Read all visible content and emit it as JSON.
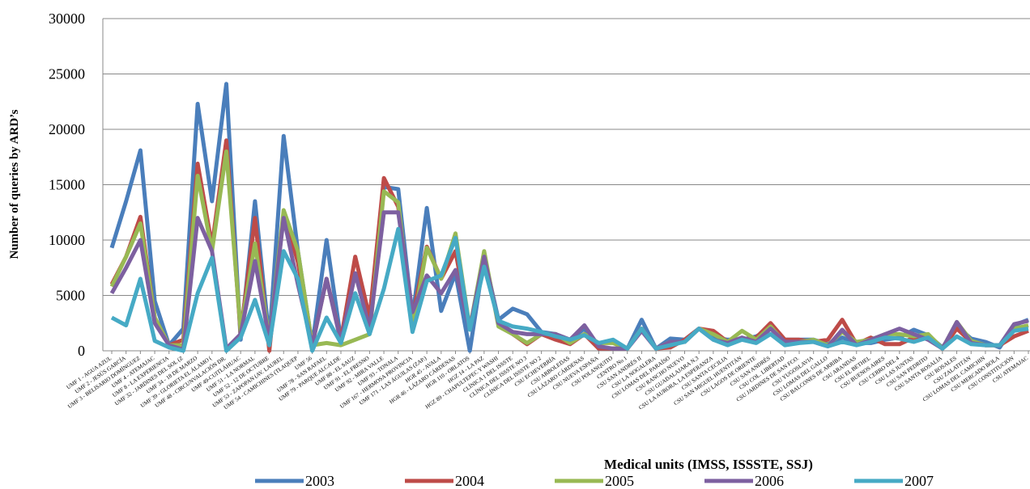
{
  "chart_data": {
    "type": "line",
    "y_label": "Number of queries by ARD’s",
    "x_label": "Medical units (IMSS, ISSSTE, SSJ)",
    "categories": [
      "UMF 1 - AGUA AZUL",
      "UMF 2 - JESÚS GARCÍA",
      "UMF 3 - BELISARIO DOMÍNGUEZ",
      "UMF 4 - ATEMAJAC",
      "UMF 8 - LA EXPERIENCIA",
      "UMF 32 - JARDINES DEL SOL (Z",
      "UMF 34 - 18 DE MARZO",
      "UMF 39 - GLORIETA EL ÁLAMO (",
      "UMF 48 - CIRCUNVALACIÓN DR.",
      "UMF 49-CUITLÁHUAC",
      "UMF 51 - LA NORMAL",
      "UMF 52 - 12 DE OCTUBRE",
      "UMF 53 - ZAPOPAN (AV. LAUREL",
      "UMF 54 - CAMICHINES (TLAQUEP",
      "UMF 56",
      "UMF 78 - SAN RAFAEL",
      "UMF 79 - PARQUE ALCALDE",
      "UMF 88 - EL SAUZ",
      "UMF 91 - EL FRESNO",
      "UMF 92 - MIRA VALLE",
      "UMF 93 - TONALA",
      "UMF 167 - HERMOSA PROVINCIA",
      "UMF 171 - LAS ÁGUILAS (ZAP.)",
      "HGR 45 - AVALA",
      "HGR 46 - LÁZARO CÁRDENAS",
      "HGR 110 - ORLATOS",
      "HGZ 14 - LA PAZ",
      "HGZ 89 - CHAPULTEPEC Y WASHI",
      "CLÍNICA 1 DEL ISSSTE",
      "CLÍNICA DEL ISSSTE NO 3",
      "CLÍNICA DEL ISSSTE NO 2",
      "CSU ECHEVERRÍA",
      "CSU ARBOLEDAS",
      "CSU LÁZARO CÁRDENAS",
      "CSU NUEVA ESPAÑA",
      "CSU POLANQUITO",
      "CENTRO No 1",
      "CSU SAN ANDRÉS II",
      "CSU LA NOGALERA",
      "CSU LOMAS DEL PARAÍSO",
      "CSU RANCHO NUEVO",
      "CSU GUADALAJARA N.3",
      "CSU LA AURORA, LA ESPERANZA",
      "CSU SANTA CECILIA",
      "CSU SAN MIGUEL HUENTITÁN",
      "CSU LAGOS DE ORIENTE",
      "CSU SAN ANDRÉS",
      "CSU COL. LIBERTAD",
      "CSU JARDINES DE SAN FCO.",
      "CSU YUGOSLAVIA",
      "CSU LOMAS DEL GALLO",
      "CSU BALCONES DE ARRIBA",
      "CSU ARANDAS",
      "CSU EL BETHEL",
      "CSU BUENOS AIRES",
      "CSU CERRO DEL 4",
      "CSU LAS JUNTAS",
      "CSU SAN PEDRITO",
      "CSU SANTA ROSALÍA",
      "CSU ROSALES",
      "CSU ZALATITÁN",
      "CSU LOMAS DEL CAMICHIN",
      "CSU MERCADO BOLA",
      "CSU CONSTITUCIÓN",
      "CSU ATEMAJAC"
    ],
    "series": [
      {
        "name": "2003",
        "color": "#4a7ebb",
        "values": [
          9300,
          13500,
          18100,
          4500,
          500,
          2000,
          22300,
          13500,
          24100,
          1000,
          13500,
          1000,
          19400,
          9000,
          500,
          10000,
          1000,
          7000,
          2500,
          14800,
          14600,
          3000,
          12900,
          3600,
          7000,
          0,
          8500,
          2800,
          3800,
          3300,
          1700,
          1500,
          1000,
          2000,
          200,
          200,
          200,
          2800,
          200,
          1100,
          1000,
          2000,
          1200,
          1000,
          1000,
          1300,
          2000,
          1000,
          1000,
          1000,
          600,
          1200,
          700,
          700,
          1000,
          1200,
          1900,
          1400,
          300,
          2200,
          1100,
          800,
          300,
          2300,
          2800
        ]
      },
      {
        "name": "2004",
        "color": "#be4b48",
        "values": [
          6000,
          8500,
          12100,
          3000,
          500,
          1000,
          16900,
          9500,
          19000,
          1500,
          12000,
          0,
          12500,
          8000,
          500,
          6500,
          1000,
          8500,
          3000,
          15600,
          13000,
          3000,
          9400,
          6500,
          9000,
          2000,
          8500,
          2500,
          1500,
          600,
          1500,
          1000,
          600,
          1500,
          200,
          200,
          200,
          2000,
          200,
          300,
          1000,
          2000,
          1800,
          800,
          1000,
          1200,
          2500,
          1000,
          1000,
          800,
          1000,
          2800,
          600,
          1200,
          600,
          600,
          1200,
          1100,
          200,
          2000,
          800,
          500,
          500,
          1300,
          1800
        ]
      },
      {
        "name": "2005",
        "color": "#98b954",
        "values": [
          5800,
          8500,
          11500,
          3000,
          500,
          500,
          15800,
          9000,
          18000,
          1800,
          9700,
          1000,
          12700,
          9000,
          500,
          700,
          500,
          1000,
          1500,
          14400,
          13400,
          2000,
          9300,
          6500,
          10600,
          2000,
          9000,
          2200,
          1500,
          700,
          1500,
          1500,
          700,
          1500,
          700,
          700,
          200,
          2000,
          200,
          800,
          800,
          2000,
          1500,
          800,
          1800,
          1000,
          2200,
          700,
          800,
          1000,
          500,
          1700,
          800,
          1000,
          1500,
          1500,
          1300,
          1500,
          200,
          2600,
          900,
          500,
          500,
          2000,
          2300
        ]
      },
      {
        "name": "2006",
        "color": "#7d60a0",
        "values": [
          5200,
          7500,
          10000,
          2500,
          500,
          100,
          12000,
          9000,
          200,
          1500,
          8100,
          1000,
          12000,
          6000,
          500,
          6500,
          800,
          7000,
          2000,
          12500,
          12500,
          3500,
          6800,
          5200,
          7300,
          2000,
          8500,
          2500,
          1700,
          1500,
          1500,
          1500,
          1000,
          2300,
          400,
          200,
          200,
          1800,
          200,
          800,
          800,
          2000,
          1000,
          700,
          1200,
          800,
          2000,
          800,
          800,
          800,
          400,
          1900,
          500,
          1000,
          1500,
          2000,
          1500,
          1000,
          200,
          2600,
          700,
          500,
          500,
          2400,
          2700
        ]
      },
      {
        "name": "2007",
        "color": "#46aac5",
        "values": [
          3000,
          2300,
          6500,
          900,
          300,
          0,
          5200,
          8400,
          0,
          1200,
          4600,
          500,
          9000,
          6500,
          0,
          3000,
          700,
          5200,
          1500,
          5600,
          11000,
          1700,
          6300,
          6800,
          10200,
          1900,
          7600,
          2700,
          2200,
          2000,
          1700,
          1300,
          1000,
          1400,
          700,
          1000,
          200,
          2000,
          200,
          500,
          800,
          2000,
          1000,
          500,
          1000,
          700,
          1500,
          500,
          700,
          800,
          400,
          800,
          500,
          800,
          1200,
          1100,
          800,
          1200,
          200,
          1300,
          600,
          500,
          500,
          1800,
          2000
        ]
      }
    ],
    "ylim": [
      0,
      30000
    ],
    "yticks": [
      0,
      5000,
      10000,
      15000,
      20000,
      25000,
      30000
    ],
    "grid": true
  }
}
